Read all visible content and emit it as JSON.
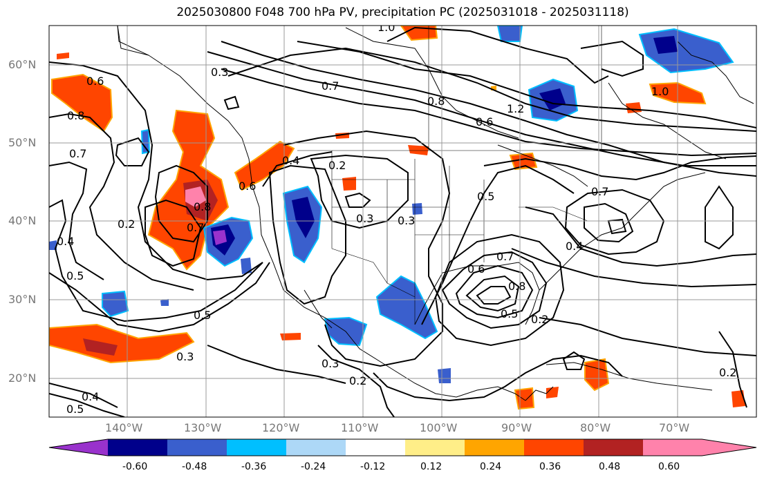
{
  "title": "2025030800 F048 700 hPa PV, precipitation PC (2025031018 - 2025031118)",
  "map": {
    "lat_labels": [
      "60°N",
      "50°N",
      "40°N",
      "30°N",
      "20°N"
    ],
    "lon_labels": [
      "140°W",
      "130°W",
      "120°W",
      "110°W",
      "100°W",
      "90°W",
      "80°W",
      "70°W"
    ],
    "contour_labels": [
      "1.0",
      "0.6",
      "0.8",
      "0.7",
      "0.3",
      "0.7",
      "0.8",
      "1.2",
      "0.6",
      "1.0",
      "0.2",
      "0.4",
      "0.6",
      "0.8",
      "0.7",
      "0.2",
      "0.3",
      "0.5",
      "0.3",
      "0.6",
      "0.7",
      "0.5",
      "0.2",
      "0.4",
      "0.4",
      "0.5",
      "0.5",
      "0.3",
      "0.3",
      "0.2",
      "0.4",
      "0.5",
      "0.2",
      "0.7",
      "0.8"
    ],
    "gridline_color": "#999999"
  },
  "colorbar": {
    "colors": [
      "#9932cc",
      "#00008b",
      "#3a5fcd",
      "#00bfff",
      "#add8f7",
      "#ffffff",
      "#ffee88",
      "#ffa500",
      "#ff4500",
      "#b22222",
      "#ff82ab"
    ],
    "tick_labels": [
      "-0.60",
      "-0.48",
      "-0.36",
      "-0.24",
      "-0.12",
      "0.12",
      "0.24",
      "0.36",
      "0.48",
      "0.60"
    ]
  }
}
